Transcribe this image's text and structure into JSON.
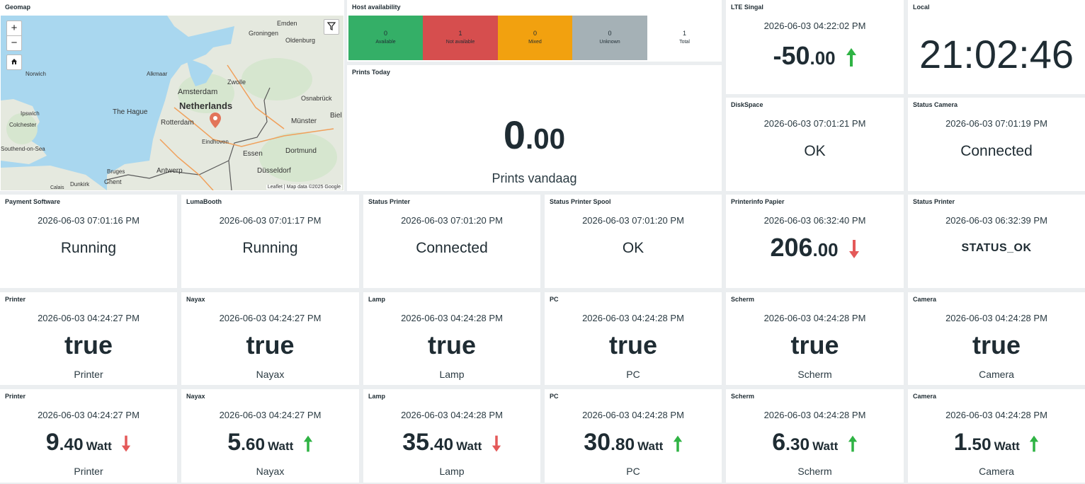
{
  "geomap": {
    "title": "Geomap",
    "zoom_in": "+",
    "zoom_out": "−",
    "attribution": "Leaflet | Map data ©2025 Google",
    "labels": {
      "netherlands": "Netherlands",
      "amsterdam": "Amsterdam",
      "the_hague": "The Hague",
      "rotterdam": "Rotterdam",
      "groningen": "Groningen",
      "emden": "Emden",
      "oldenburg": "Oldenburg",
      "alkmaar": "Alkmaar",
      "zwolle": "Zwolle",
      "osnabruck": "Osnabrück",
      "munster": "Münster",
      "bielefeld": "Biel",
      "norwich": "Norwich",
      "ipswich": "Ipswich",
      "colchester": "Colchester",
      "southend": "Southend-on-Sea",
      "eindhoven": "Eindhoven",
      "essen": "Essen",
      "dortmund": "Dortmund",
      "antwerp": "Antwerp",
      "dusseldorf": "Düsseldorf",
      "bruges": "Bruges",
      "ghent": "Ghent",
      "dunkirk": "Dunkirk",
      "calais": "Calais"
    }
  },
  "host": {
    "title": "Host availability",
    "cells": [
      {
        "count": "0",
        "label": "Available",
        "color": "#34af67"
      },
      {
        "count": "1",
        "label": "Not available",
        "color": "#d64e4e"
      },
      {
        "count": "0",
        "label": "Mixed",
        "color": "#f2a10f"
      },
      {
        "count": "0",
        "label": "Unknown",
        "color": "#a5b1b6"
      },
      {
        "count": "1",
        "label": "Total",
        "color": "#ffffff"
      }
    ]
  },
  "prints": {
    "title": "Prints Today",
    "int": "0",
    "dec": ".00",
    "caption": "Prints vandaag"
  },
  "lte": {
    "title": "LTE Singal",
    "time": "2026-06-03 04:22:02 PM",
    "int": "-50",
    "dec": ".00",
    "trend": "up"
  },
  "local": {
    "title": "Local",
    "clock": "21:02:46"
  },
  "disk": {
    "title": "DiskSpace",
    "time": "2026-06-03 07:01:21 PM",
    "value": "OK"
  },
  "statcam": {
    "title": "Status Camera",
    "time": "2026-06-03 07:01:19 PM",
    "value": "Connected"
  },
  "row2": [
    {
      "title": "Payment Software",
      "time": "2026-06-03 07:01:16 PM",
      "value": "Running"
    },
    {
      "title": "LumaBooth",
      "time": "2026-06-03 07:01:17 PM",
      "value": "Running"
    },
    {
      "title": "Status Printer",
      "time": "2026-06-03 07:01:20 PM",
      "value": "Connected"
    },
    {
      "title": "Status Printer Spool",
      "time": "2026-06-03 07:01:20 PM",
      "value": "OK"
    }
  ],
  "papier": {
    "title": "Printerinfo Papier",
    "time": "2026-06-03 06:32:40 PM",
    "int": "206",
    "dec": ".00",
    "trend": "down"
  },
  "statprinter2": {
    "title": "Status Printer",
    "time": "2026-06-03 06:32:39 PM",
    "value": "STATUS_OK"
  },
  "row3": [
    {
      "title": "Printer",
      "time": "2026-06-03 04:24:27 PM",
      "value": "true",
      "caption": "Printer"
    },
    {
      "title": "Nayax",
      "time": "2026-06-03 04:24:27 PM",
      "value": "true",
      "caption": "Nayax"
    },
    {
      "title": "Lamp",
      "time": "2026-06-03 04:24:28 PM",
      "value": "true",
      "caption": "Lamp"
    },
    {
      "title": "PC",
      "time": "2026-06-03 04:24:28 PM",
      "value": "true",
      "caption": "PC"
    },
    {
      "title": "Scherm",
      "time": "2026-06-03 04:24:28 PM",
      "value": "true",
      "caption": "Scherm"
    },
    {
      "title": "Camera",
      "time": "2026-06-03 04:24:28 PM",
      "value": "true",
      "caption": "Camera"
    }
  ],
  "row4": [
    {
      "title": "Printer",
      "time": "2026-06-03 04:24:27 PM",
      "int": "9",
      "dec": ".40",
      "unit": "Watt",
      "trend": "down",
      "caption": "Printer"
    },
    {
      "title": "Nayax",
      "time": "2026-06-03 04:24:27 PM",
      "int": "5",
      "dec": ".60",
      "unit": "Watt",
      "trend": "up",
      "caption": "Nayax"
    },
    {
      "title": "Lamp",
      "time": "2026-06-03 04:24:28 PM",
      "int": "35",
      "dec": ".40",
      "unit": "Watt",
      "trend": "down",
      "caption": "Lamp"
    },
    {
      "title": "PC",
      "time": "2026-06-03 04:24:28 PM",
      "int": "30",
      "dec": ".80",
      "unit": "Watt",
      "trend": "up",
      "caption": "PC"
    },
    {
      "title": "Scherm",
      "time": "2026-06-03 04:24:28 PM",
      "int": "6",
      "dec": ".30",
      "unit": "Watt",
      "trend": "up",
      "caption": "Scherm"
    },
    {
      "title": "Camera",
      "time": "2026-06-03 04:24:28 PM",
      "int": "1",
      "dec": ".50",
      "unit": "Watt",
      "trend": "up",
      "caption": "Camera"
    }
  ],
  "colors": {
    "up": "#2fb344",
    "down": "#e45959",
    "text": "#1f2c33",
    "background": "#ebeef0"
  }
}
